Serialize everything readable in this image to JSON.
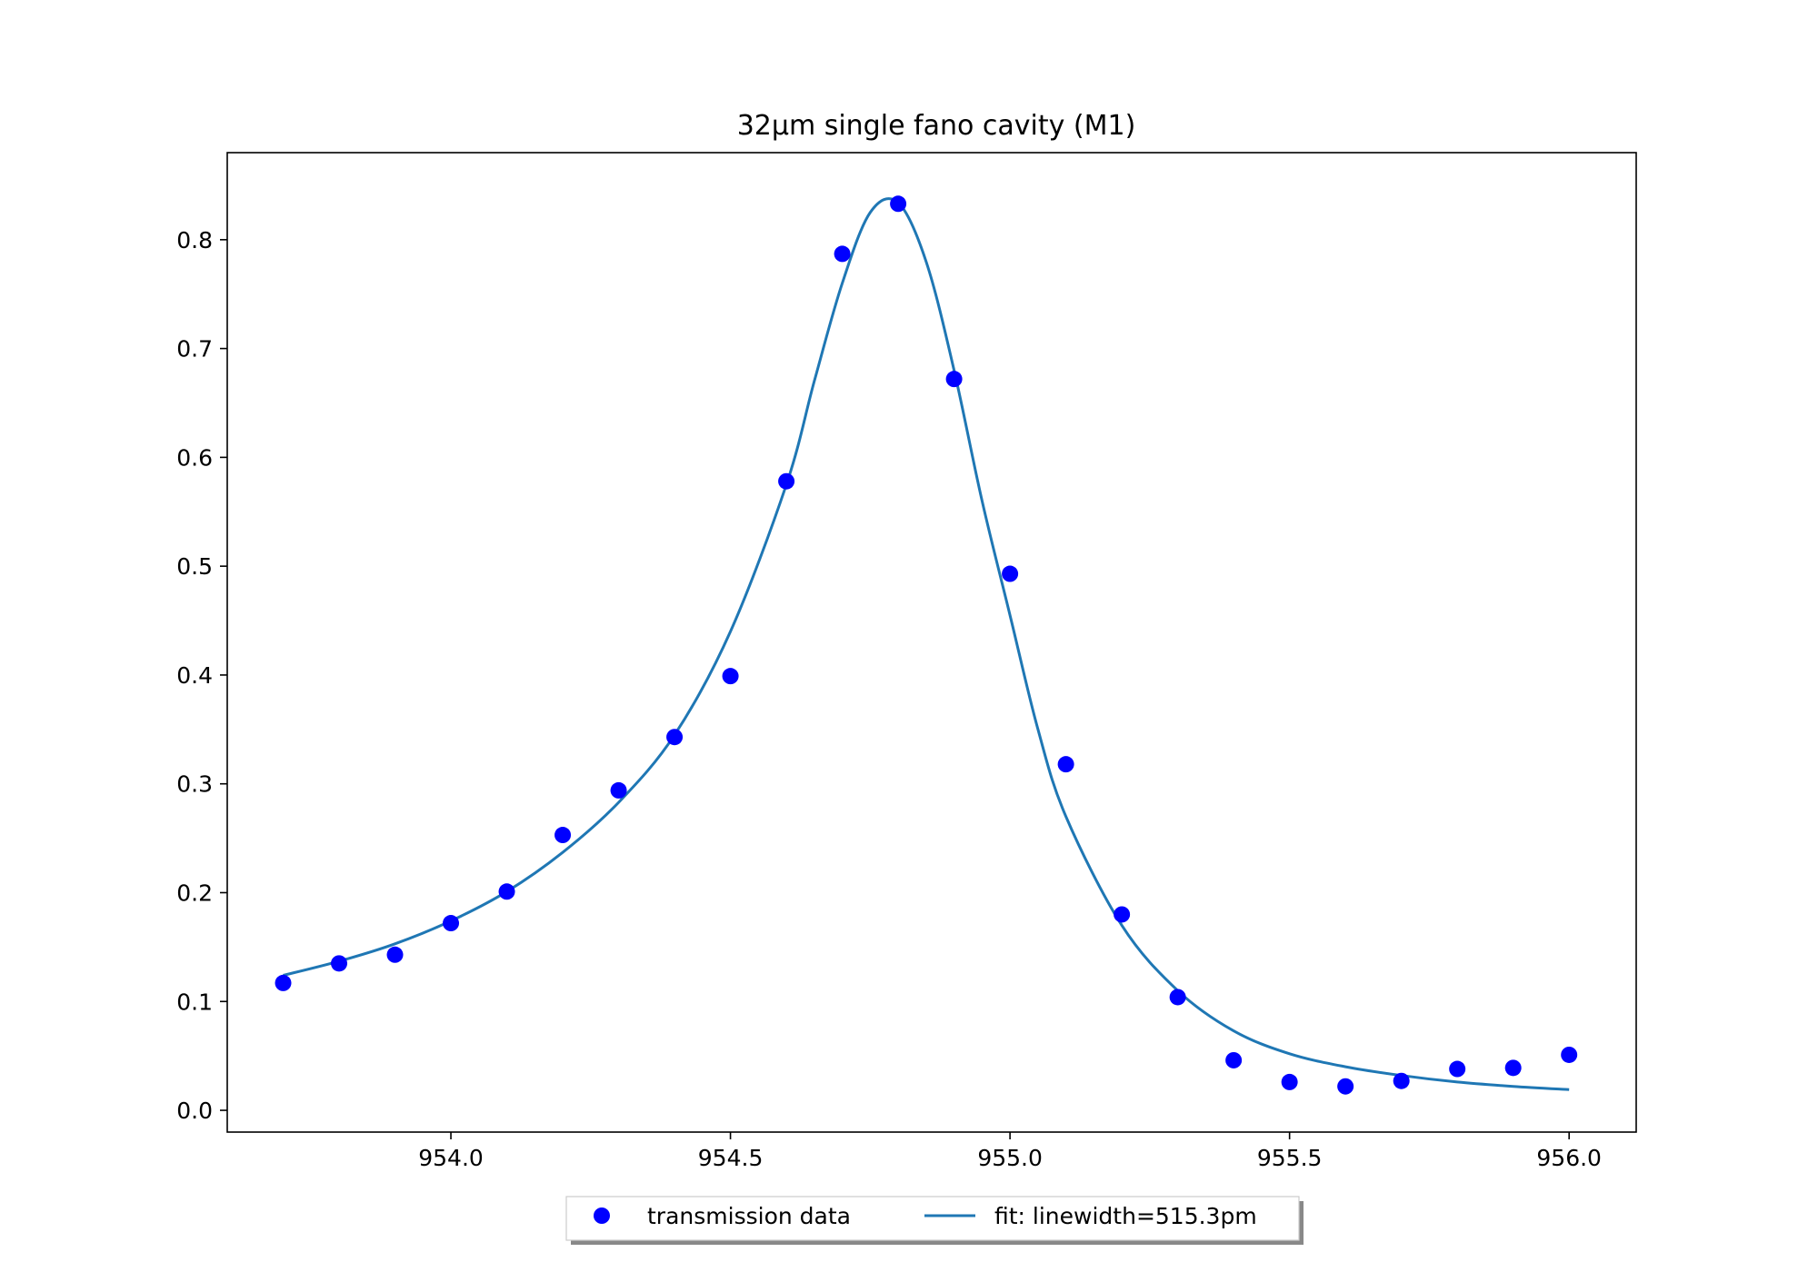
{
  "chart_data": {
    "type": "scatter",
    "title": "32μm single fano cavity (M1)",
    "xlabel": "",
    "ylabel": "",
    "xlim": [
      953.6,
      956.12
    ],
    "ylim": [
      -0.02,
      0.88
    ],
    "xticks": [
      954.0,
      954.5,
      955.0,
      955.5,
      956.0
    ],
    "xtick_labels": [
      "954.0",
      "954.5",
      "955.0",
      "955.5",
      "956.0"
    ],
    "yticks": [
      0.0,
      0.1,
      0.2,
      0.3,
      0.4,
      0.5,
      0.6,
      0.7,
      0.8
    ],
    "ytick_labels": [
      "0.0",
      "0.1",
      "0.2",
      "0.3",
      "0.4",
      "0.5",
      "0.6",
      "0.7",
      "0.8"
    ],
    "grid": false,
    "legend_placement": "bottom-center, outside plot",
    "series": [
      {
        "name": "transmission data",
        "kind": "scatter",
        "color": "#0000ff",
        "x": [
          953.7,
          953.8,
          953.9,
          954.0,
          954.1,
          954.2,
          954.3,
          954.4,
          954.5,
          954.6,
          954.7,
          954.8,
          954.9,
          955.0,
          955.1,
          955.2,
          955.3,
          955.4,
          955.5,
          955.6,
          955.7,
          955.8,
          955.9,
          956.0
        ],
        "y": [
          0.117,
          0.135,
          0.143,
          0.172,
          0.201,
          0.253,
          0.294,
          0.343,
          0.399,
          0.578,
          0.787,
          0.833,
          0.672,
          0.493,
          0.318,
          0.18,
          0.104,
          0.046,
          0.026,
          0.022,
          0.027,
          0.038,
          0.039,
          0.051
        ]
      },
      {
        "name": "fit: linewidth=515.3pm",
        "kind": "line",
        "color": "#1f77b4",
        "x": [
          953.7,
          953.8,
          953.9,
          954.0,
          954.1,
          954.2,
          954.3,
          954.4,
          954.5,
          954.6,
          954.65,
          954.7,
          954.75,
          954.8,
          954.85,
          954.9,
          954.95,
          955.0,
          955.05,
          955.1,
          955.2,
          955.3,
          955.4,
          955.5,
          955.6,
          955.7,
          955.8,
          955.9,
          956.0
        ],
        "y": [
          0.124,
          0.137,
          0.153,
          0.174,
          0.201,
          0.237,
          0.283,
          0.345,
          0.44,
          0.575,
          0.67,
          0.76,
          0.825,
          0.834,
          0.78,
          0.68,
          0.56,
          0.455,
          0.35,
          0.27,
          0.17,
          0.11,
          0.073,
          0.052,
          0.04,
          0.032,
          0.026,
          0.022,
          0.019
        ]
      }
    ]
  }
}
